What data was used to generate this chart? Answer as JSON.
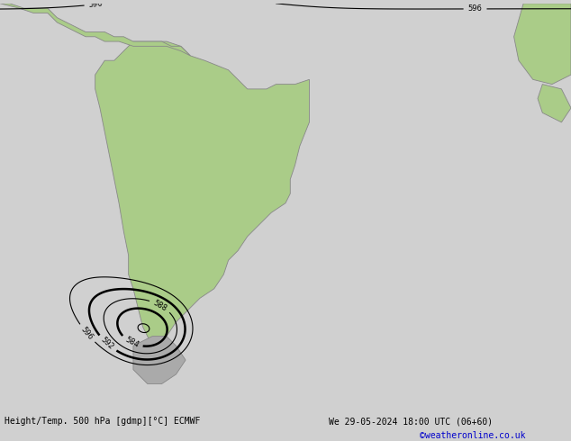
{
  "title_left": "Height/Temp. 500 hPa [gdmp][°C] ECMWF",
  "title_right": "We 29-05-2024 18:00 UTC (06+60)",
  "credit": "©weatheronline.co.uk",
  "bg_color": "#d0d0d0",
  "ocean_color": "#e0e0e0",
  "land_color": "#aacc88",
  "land_edge_color": "#888888",
  "gray_land_color": "#aaaaaa",
  "z500_color": "#000000",
  "bar_color": "#c8c8c8",
  "credit_color": "#0000cc",
  "temp_colors": {
    "m5": "#dd0000",
    "m10": "#ff8800",
    "m15": "#ff8800",
    "m20": "#88cc44",
    "m25": "#00ccaa",
    "m30": "#00aacc",
    "p0": "#ff8800",
    "p5": "#dd0000"
  },
  "xlim": [
    -100,
    20
  ],
  "ylim": [
    -65,
    20
  ]
}
